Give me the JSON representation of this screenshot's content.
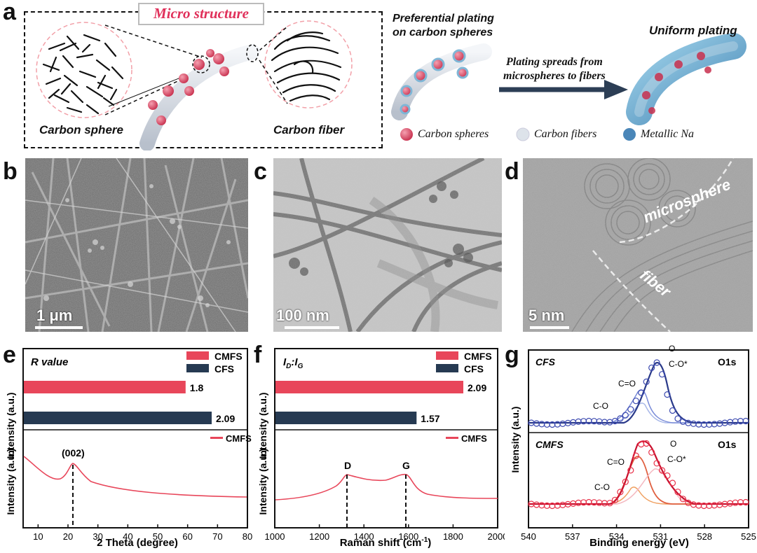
{
  "panel_labels": {
    "a": "a",
    "b": "b",
    "c": "c",
    "d": "d",
    "e": "e",
    "f": "f",
    "g": "g"
  },
  "panel_a": {
    "micro_title": "Micro structure",
    "carbon_sphere": "Carbon sphere",
    "carbon_fiber": "Carbon fiber",
    "pref_plating_1": "Preferential plating",
    "pref_plating_2": "on carbon spheres",
    "arrow_text_1": "Plating spreads from",
    "arrow_text_2": "microspheres to fibers",
    "uniform": "Uniform plating",
    "legend": [
      {
        "label": "Carbon spheres",
        "color": "#e0506a"
      },
      {
        "label": "Carbon fibers",
        "color": "#dde3ea"
      },
      {
        "label": "Metallic Na",
        "color": "#4a86b8"
      }
    ]
  },
  "panel_b": {
    "scale": "1 μm"
  },
  "panel_c": {
    "scale": "100 nm"
  },
  "panel_d": {
    "scale": "5 nm",
    "label_sphere": "microsphere",
    "label_fiber": "fiber"
  },
  "colors": {
    "cmfs": "#e8465a",
    "cfs": "#263a52",
    "accent": "#e0305a"
  },
  "chart_data": [
    {
      "id": "e-top",
      "type": "bar",
      "title": "R value",
      "categories": [
        "CMFS",
        "CFS"
      ],
      "values": [
        1.8,
        2.09
      ],
      "legend": [
        "CMFS",
        "CFS"
      ]
    },
    {
      "id": "e-bottom",
      "type": "line",
      "xlabel": "2 Theta (degree)",
      "ylabel": "Intensity (a.u.)",
      "xlim": [
        5,
        80
      ],
      "xticks": [
        10,
        20,
        30,
        40,
        50,
        60,
        70,
        80
      ],
      "series": [
        {
          "name": "CMFS"
        }
      ],
      "annotations": [
        {
          "text": "(002)",
          "x": 21.5
        }
      ]
    },
    {
      "id": "f-top",
      "type": "bar",
      "title": "ID:IG",
      "categories": [
        "CMFS",
        "CFS"
      ],
      "values": [
        2.09,
        1.57
      ],
      "legend": [
        "CMFS",
        "CFS"
      ]
    },
    {
      "id": "f-bottom",
      "type": "line",
      "xlabel": "Raman shift (cm⁻¹)",
      "ylabel": "Intensity (a.u.)",
      "xlim": [
        1000,
        2000
      ],
      "xticks": [
        1000,
        1200,
        1400,
        1600,
        1800,
        2000
      ],
      "series": [
        {
          "name": "CMFS"
        }
      ],
      "annotations": [
        {
          "text": "D",
          "x": 1320
        },
        {
          "text": "G",
          "x": 1585
        }
      ]
    },
    {
      "id": "g",
      "type": "line",
      "xlabel": "Binding energy (eV)",
      "ylabel": "Intensity (a.u.)",
      "xlim": [
        540,
        525
      ],
      "xticks": [
        540,
        537,
        534,
        531,
        528,
        525
      ],
      "subplots": [
        {
          "name": "CFS",
          "tag": "O1s",
          "peaks": [
            "C-O",
            "C=O",
            "C-O*"
          ]
        },
        {
          "name": "CMFS",
          "tag": "O1s",
          "peaks": [
            "C-O",
            "C=O",
            "C-O*"
          ]
        }
      ]
    }
  ],
  "chart_text": {
    "e_title": "R value",
    "f_title_main": "I",
    "f_title_d": "D",
    "f_title_sep": ":I",
    "f_title_g": "G",
    "cmfs": "CMFS",
    "cfs": "CFS",
    "e_v1": "1.8",
    "e_v2": "2.09",
    "f_v1": "2.09",
    "f_v2": "1.57",
    "ylabel_top": "Intensity (a.u.)",
    "ylabel_bottom": "Intensity (a.u.)",
    "e_xlabel": "2 Theta (degree)",
    "f_xlabel": "Raman shift (cm",
    "f_xlabel_sup": "-1",
    "f_xlabel_end": ")",
    "g_xlabel": "Binding energy (eV)",
    "peak_002": "(002)",
    "peak_d": "D",
    "peak_g": "G",
    "g_cfs": "CFS",
    "g_cmfs": "CMFS",
    "o1s": "O1s",
    "co": "C-O",
    "c_eq_o": "C=O",
    "coo": "C-O*",
    "o": "O"
  }
}
